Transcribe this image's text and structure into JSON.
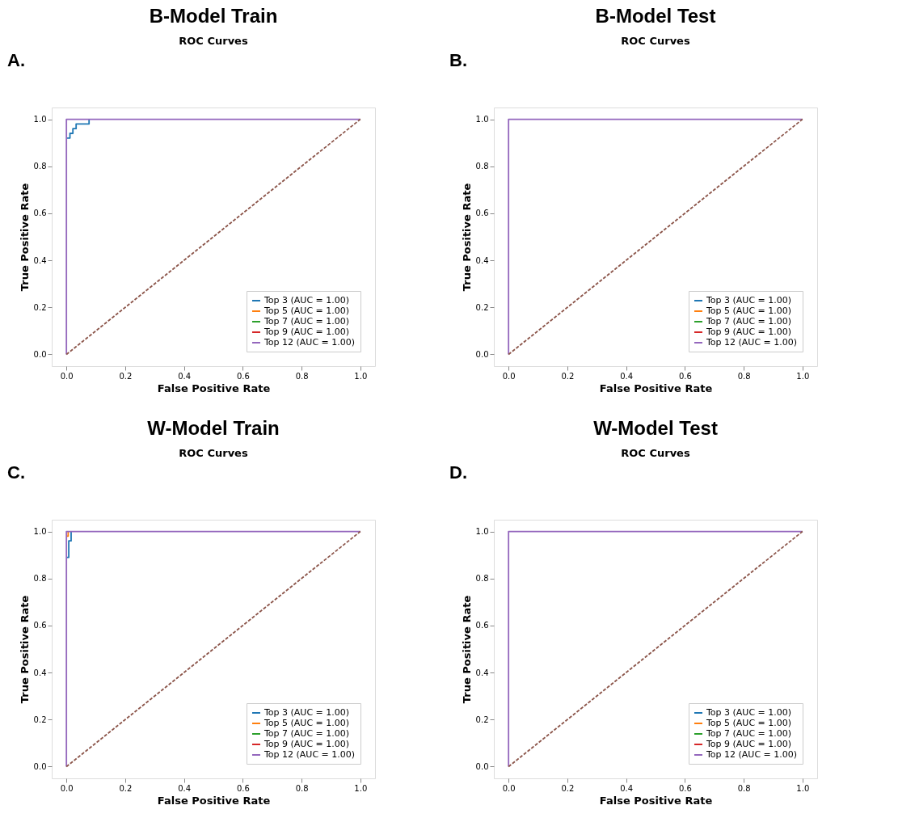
{
  "chart_data": [
    {
      "type": "line",
      "title": "B-Model Train",
      "subtitle": "ROC Curves",
      "annotations": [
        "A."
      ],
      "xlabel": "False Positive Rate",
      "ylabel": "True Positive Rate",
      "xlim": [
        -0.05,
        1.05
      ],
      "ylim": [
        -0.05,
        1.05
      ],
      "xticks": [
        {
          "value": 0,
          "label": "0.0"
        },
        {
          "value": 0.2,
          "label": "0.2"
        },
        {
          "value": 0.4,
          "label": "0.4"
        },
        {
          "value": 0.6,
          "label": "0.6"
        },
        {
          "value": 0.8,
          "label": "0.8"
        },
        {
          "value": 1,
          "label": "1.0"
        }
      ],
      "yticks": [
        {
          "value": 0,
          "label": "0.0"
        },
        {
          "value": 0.2,
          "label": "0.2"
        },
        {
          "value": 0.4,
          "label": "0.4"
        },
        {
          "value": 0.6,
          "label": "0.6"
        },
        {
          "value": 0.8,
          "label": "0.8"
        },
        {
          "value": 1,
          "label": "1.0"
        }
      ],
      "grid": false,
      "legend": "bottom right",
      "marker": "none",
      "series": [
        {
          "name": "Top 3 (AUC = 1.00)",
          "color": "#1f77b4",
          "x": [
            0,
            0.012,
            0.012,
            0.022,
            0.022,
            0.033,
            0.033,
            0.077,
            0.077
          ],
          "values": [
            0.92,
            0.92,
            0.94,
            0.94,
            0.96,
            0.96,
            0.98,
            0.98,
            1
          ]
        },
        {
          "name": "Top 5 (AUC = 1.00)",
          "color": "#ff7f0e"
        },
        {
          "name": "Top 7 (AUC = 1.00)",
          "color": "#2ca02c"
        },
        {
          "name": "Top 9 (AUC = 1.00)",
          "color": "#d62728"
        },
        {
          "name": "Top 12 (AUC = 1.00)",
          "color": "#9467bd",
          "x": [
            0,
            0,
            1
          ],
          "values": [
            0,
            1,
            1
          ]
        },
        {
          "color": "#8c564b",
          "line_style": "dashed",
          "x": [
            0,
            1
          ],
          "values": [
            0,
            1
          ]
        }
      ]
    },
    {
      "type": "line",
      "title": "B-Model Test",
      "subtitle": "ROC Curves",
      "annotations": [
        "B."
      ],
      "xlabel": "False Positive Rate",
      "ylabel": "True Positive Rate",
      "xlim": [
        -0.05,
        1.05
      ],
      "ylim": [
        -0.05,
        1.05
      ],
      "xticks": [
        {
          "value": 0,
          "label": "0.0"
        },
        {
          "value": 0.2,
          "label": "0.2"
        },
        {
          "value": 0.4,
          "label": "0.4"
        },
        {
          "value": 0.6,
          "label": "0.6"
        },
        {
          "value": 0.8,
          "label": "0.8"
        },
        {
          "value": 1,
          "label": "1.0"
        }
      ],
      "yticks": [
        {
          "value": 0,
          "label": "0.0"
        },
        {
          "value": 0.2,
          "label": "0.2"
        },
        {
          "value": 0.4,
          "label": "0.4"
        },
        {
          "value": 0.6,
          "label": "0.6"
        },
        {
          "value": 0.8,
          "label": "0.8"
        },
        {
          "value": 1,
          "label": "1.0"
        }
      ],
      "grid": false,
      "legend": "bottom right",
      "marker": "none",
      "series": [
        {
          "name": "Top 3 (AUC = 1.00)",
          "color": "#1f77b4"
        },
        {
          "name": "Top 5 (AUC = 1.00)",
          "color": "#ff7f0e"
        },
        {
          "name": "Top 7 (AUC = 1.00)",
          "color": "#2ca02c"
        },
        {
          "name": "Top 9 (AUC = 1.00)",
          "color": "#d62728"
        },
        {
          "name": "Top 12 (AUC = 1.00)",
          "color": "#9467bd",
          "x": [
            0,
            0,
            1
          ],
          "values": [
            0,
            1,
            1
          ]
        },
        {
          "color": "#8c564b",
          "line_style": "dashed",
          "x": [
            0,
            1
          ],
          "values": [
            0,
            1
          ]
        }
      ]
    },
    {
      "type": "line",
      "title": "W-Model Train",
      "subtitle": "ROC Curves",
      "annotations": [
        "C."
      ],
      "xlabel": "False Positive Rate",
      "ylabel": "True Positive Rate",
      "xlim": [
        -0.05,
        1.05
      ],
      "ylim": [
        -0.05,
        1.05
      ],
      "xticks": [
        {
          "value": 0,
          "label": "0.0"
        },
        {
          "value": 0.2,
          "label": "0.2"
        },
        {
          "value": 0.4,
          "label": "0.4"
        },
        {
          "value": 0.6,
          "label": "0.6"
        },
        {
          "value": 0.8,
          "label": "0.8"
        },
        {
          "value": 1,
          "label": "1.0"
        }
      ],
      "yticks": [
        {
          "value": 0,
          "label": "0.0"
        },
        {
          "value": 0.2,
          "label": "0.2"
        },
        {
          "value": 0.4,
          "label": "0.4"
        },
        {
          "value": 0.6,
          "label": "0.6"
        },
        {
          "value": 0.8,
          "label": "0.8"
        },
        {
          "value": 1,
          "label": "1.0"
        }
      ],
      "grid": false,
      "legend": "bottom right",
      "marker": "none",
      "series": [
        {
          "name": "Top 3 (AUC = 1.00)",
          "color": "#1f77b4",
          "x": [
            0,
            0.008,
            0.008,
            0.016,
            0.016
          ],
          "values": [
            0.89,
            0.89,
            0.96,
            0.96,
            1
          ]
        },
        {
          "name": "Top 5 (AUC = 1.00)",
          "color": "#ff7f0e",
          "x": [
            0,
            0.006,
            0.006
          ],
          "values": [
            0.98,
            0.98,
            1
          ]
        },
        {
          "name": "Top 7 (AUC = 1.00)",
          "color": "#2ca02c"
        },
        {
          "name": "Top 9 (AUC = 1.00)",
          "color": "#d62728"
        },
        {
          "name": "Top 12 (AUC = 1.00)",
          "color": "#9467bd",
          "x": [
            0,
            0,
            1
          ],
          "values": [
            0,
            1,
            1
          ]
        },
        {
          "color": "#8c564b",
          "line_style": "dashed",
          "x": [
            0,
            1
          ],
          "values": [
            0,
            1
          ]
        }
      ]
    },
    {
      "type": "line",
      "title": "W-Model Test",
      "subtitle": "ROC Curves",
      "annotations": [
        "D."
      ],
      "xlabel": "False Positive Rate",
      "ylabel": "True Positive Rate",
      "xlim": [
        -0.05,
        1.05
      ],
      "ylim": [
        -0.05,
        1.05
      ],
      "xticks": [
        {
          "value": 0,
          "label": "0.0"
        },
        {
          "value": 0.2,
          "label": "0.2"
        },
        {
          "value": 0.4,
          "label": "0.4"
        },
        {
          "value": 0.6,
          "label": "0.6"
        },
        {
          "value": 0.8,
          "label": "0.8"
        },
        {
          "value": 1,
          "label": "1.0"
        }
      ],
      "yticks": [
        {
          "value": 0,
          "label": "0.0"
        },
        {
          "value": 0.2,
          "label": "0.2"
        },
        {
          "value": 0.4,
          "label": "0.4"
        },
        {
          "value": 0.6,
          "label": "0.6"
        },
        {
          "value": 0.8,
          "label": "0.8"
        },
        {
          "value": 1,
          "label": "1.0"
        }
      ],
      "grid": false,
      "legend": "bottom right",
      "marker": "none",
      "series": [
        {
          "name": "Top 3 (AUC = 1.00)",
          "color": "#1f77b4"
        },
        {
          "name": "Top 5 (AUC = 1.00)",
          "color": "#ff7f0e"
        },
        {
          "name": "Top 7 (AUC = 1.00)",
          "color": "#2ca02c"
        },
        {
          "name": "Top 9 (AUC = 1.00)",
          "color": "#d62728"
        },
        {
          "name": "Top 12 (AUC = 1.00)",
          "color": "#9467bd",
          "x": [
            0,
            0,
            1
          ],
          "values": [
            0,
            1,
            1
          ]
        },
        {
          "color": "#8c564b",
          "line_style": "dashed",
          "x": [
            0,
            1
          ],
          "values": [
            0,
            1
          ]
        }
      ]
    }
  ]
}
